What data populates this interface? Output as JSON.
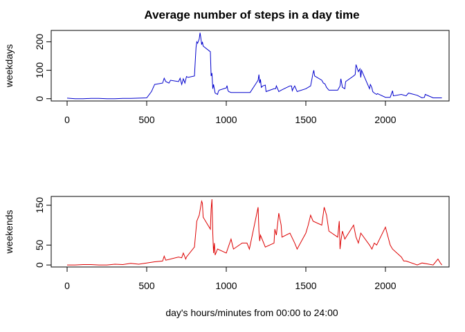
{
  "chart_data": [
    {
      "type": "line",
      "title": "Average number of steps in a day time",
      "ylabel": "weekdays",
      "xlabel": "",
      "xlim": [
        -100,
        2400
      ],
      "ylim": [
        -8,
        240
      ],
      "xticks": [
        0,
        500,
        1000,
        1500,
        2000
      ],
      "yticks": [
        0,
        100,
        200
      ],
      "grid": false,
      "series": [
        {
          "color": "#0000CD",
          "x": [
            0,
            50,
            100,
            150,
            200,
            250,
            300,
            350,
            400,
            450,
            500,
            530,
            550,
            600,
            610,
            620,
            640,
            650,
            700,
            710,
            720,
            730,
            740,
            750,
            760,
            800,
            810,
            815,
            820,
            830,
            835,
            840,
            845,
            850,
            855,
            900,
            905,
            910,
            915,
            920,
            930,
            945,
            950,
            955,
            1000,
            1005,
            1010,
            1015,
            1030,
            1100,
            1150,
            1200,
            1205,
            1210,
            1215,
            1220,
            1230,
            1245,
            1250,
            1300,
            1310,
            1315,
            1330,
            1345,
            1400,
            1410,
            1415,
            1420,
            1430,
            1445,
            1500,
            1530,
            1545,
            1550,
            1555,
            1600,
            1610,
            1620,
            1630,
            1645,
            1700,
            1710,
            1715,
            1720,
            1730,
            1745,
            1750,
            1800,
            1810,
            1815,
            1830,
            1840,
            1845,
            1850,
            1900,
            1905,
            1910,
            1915,
            1920,
            1930,
            1945,
            1950,
            2000,
            2030,
            2045,
            2050,
            2100,
            2130,
            2145,
            2200,
            2230,
            2245,
            2250,
            2300,
            2355
          ],
          "values": [
            2,
            0,
            0,
            1,
            1,
            0,
            0,
            1,
            1,
            2,
            3,
            25,
            50,
            55,
            72,
            60,
            55,
            65,
            60,
            72,
            50,
            70,
            55,
            78,
            75,
            80,
            180,
            200,
            195,
            210,
            232,
            215,
            190,
            200,
            185,
            165,
            80,
            90,
            35,
            50,
            20,
            15,
            25,
            30,
            38,
            46,
            30,
            25,
            22,
            22,
            22,
            65,
            85,
            55,
            68,
            40,
            45,
            48,
            25,
            35,
            35,
            45,
            25,
            30,
            45,
            45,
            28,
            35,
            45,
            25,
            35,
            45,
            90,
            100,
            80,
            65,
            55,
            52,
            40,
            30,
            30,
            40,
            45,
            70,
            40,
            35,
            60,
            80,
            85,
            120,
            95,
            105,
            75,
            100,
            35,
            50,
            45,
            38,
            25,
            20,
            15,
            18,
            5,
            5,
            28,
            10,
            15,
            10,
            20,
            12,
            3,
            5,
            15,
            3,
            3
          ]
        }
      ]
    },
    {
      "type": "line",
      "title": "",
      "ylabel": "weekends",
      "xlabel": "day's hours/minutes from 00:00 to 24:00",
      "xlim": [
        -100,
        2400
      ],
      "ylim": [
        -5,
        172
      ],
      "xticks": [
        0,
        500,
        1000,
        1500,
        2000
      ],
      "yticks": [
        0,
        50,
        150
      ],
      "grid": false,
      "series": [
        {
          "color": "#DD0000",
          "x": [
            0,
            50,
            100,
            150,
            200,
            250,
            300,
            350,
            400,
            450,
            500,
            550,
            600,
            610,
            620,
            650,
            700,
            720,
            730,
            745,
            750,
            800,
            815,
            830,
            845,
            850,
            855,
            900,
            905,
            910,
            915,
            920,
            925,
            930,
            945,
            1000,
            1030,
            1045,
            1100,
            1115,
            1130,
            1145,
            1200,
            1205,
            1210,
            1215,
            1230,
            1245,
            1300,
            1305,
            1315,
            1330,
            1345,
            1350,
            1400,
            1430,
            1445,
            1500,
            1515,
            1530,
            1545,
            1600,
            1615,
            1630,
            1645,
            1700,
            1710,
            1715,
            1720,
            1730,
            1745,
            1800,
            1815,
            1830,
            1845,
            1900,
            1915,
            1930,
            1945,
            2000,
            2030,
            2045,
            2100,
            2115,
            2130,
            2200,
            2230,
            2300,
            2330,
            2345,
            2355
          ],
          "values": [
            0,
            0,
            1,
            1,
            0,
            0,
            2,
            1,
            4,
            2,
            5,
            8,
            10,
            22,
            12,
            15,
            20,
            18,
            30,
            15,
            20,
            45,
            110,
            125,
            160,
            155,
            120,
            90,
            140,
            165,
            80,
            30,
            55,
            25,
            40,
            30,
            65,
            40,
            55,
            55,
            55,
            40,
            145,
            85,
            60,
            75,
            60,
            45,
            55,
            90,
            75,
            130,
            100,
            70,
            80,
            55,
            40,
            80,
            100,
            125,
            110,
            100,
            145,
            125,
            85,
            70,
            110,
            40,
            60,
            85,
            65,
            100,
            70,
            55,
            80,
            50,
            40,
            55,
            50,
            95,
            50,
            40,
            20,
            10,
            10,
            0,
            5,
            0,
            15,
            5,
            0
          ]
        }
      ]
    }
  ]
}
